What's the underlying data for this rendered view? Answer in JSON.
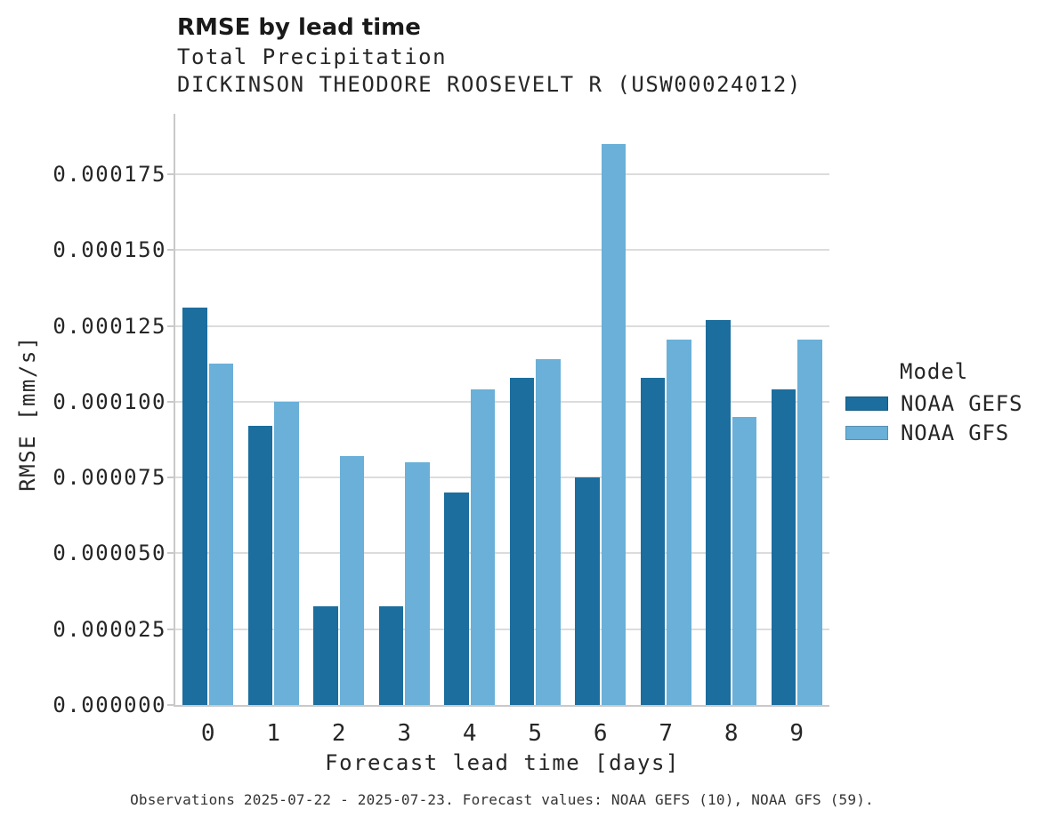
{
  "header": {
    "title": "RMSE by lead time",
    "subtitle": "Total Precipitation",
    "station": "DICKINSON THEODORE ROOSEVELT R (USW00024012)"
  },
  "chart_data": {
    "type": "bar",
    "categories": [
      "0",
      "1",
      "2",
      "3",
      "4",
      "5",
      "6",
      "7",
      "8",
      "9"
    ],
    "series": [
      {
        "name": "NOAA GEFS",
        "color": "#1b6e9e",
        "values": [
          0.000131,
          9.2e-05,
          3.25e-05,
          3.25e-05,
          7e-05,
          0.000108,
          7.5e-05,
          0.000108,
          0.000127,
          0.000104
        ]
      },
      {
        "name": "NOAA GFS",
        "color": "#6ab0d8",
        "values": [
          0.0001125,
          0.0001,
          8.2e-05,
          8e-05,
          0.000104,
          0.000114,
          0.000185,
          0.0001205,
          9.5e-05,
          0.0001205
        ]
      }
    ],
    "title": "RMSE by lead time",
    "subtitle": "Total Precipitation",
    "annotation": "DICKINSON THEODORE ROOSEVELT R (USW00024012)",
    "xlabel": "Forecast lead time [days]",
    "ylabel": "RMSE [mm/s]",
    "ylim": [
      0,
      0.000195
    ],
    "yticks": [
      0,
      2.5e-05,
      5e-05,
      7.5e-05,
      0.0001,
      0.000125,
      0.00015,
      0.000175
    ],
    "ytick_labels": [
      "0.000000",
      "0.000025",
      "0.000050",
      "0.000075",
      "0.000100",
      "0.000125",
      "0.000150",
      "0.000175"
    ],
    "grid": true,
    "legend_position": "right"
  },
  "legend": {
    "title": "Model",
    "entries": [
      {
        "label": "NOAA GEFS",
        "color": "#1b6e9e"
      },
      {
        "label": "NOAA GFS",
        "color": "#6ab0d8"
      }
    ]
  },
  "caption": "Observations 2025-07-22 - 2025-07-23. Forecast values: NOAA GEFS (10), NOAA GFS (59).",
  "colors": {
    "gridline": "#dcdcdc",
    "spine": "#c9c9c9",
    "text": "#262626",
    "gefs_bar": "#1b6e9e",
    "gfs_bar": "#6ab0d8"
  }
}
